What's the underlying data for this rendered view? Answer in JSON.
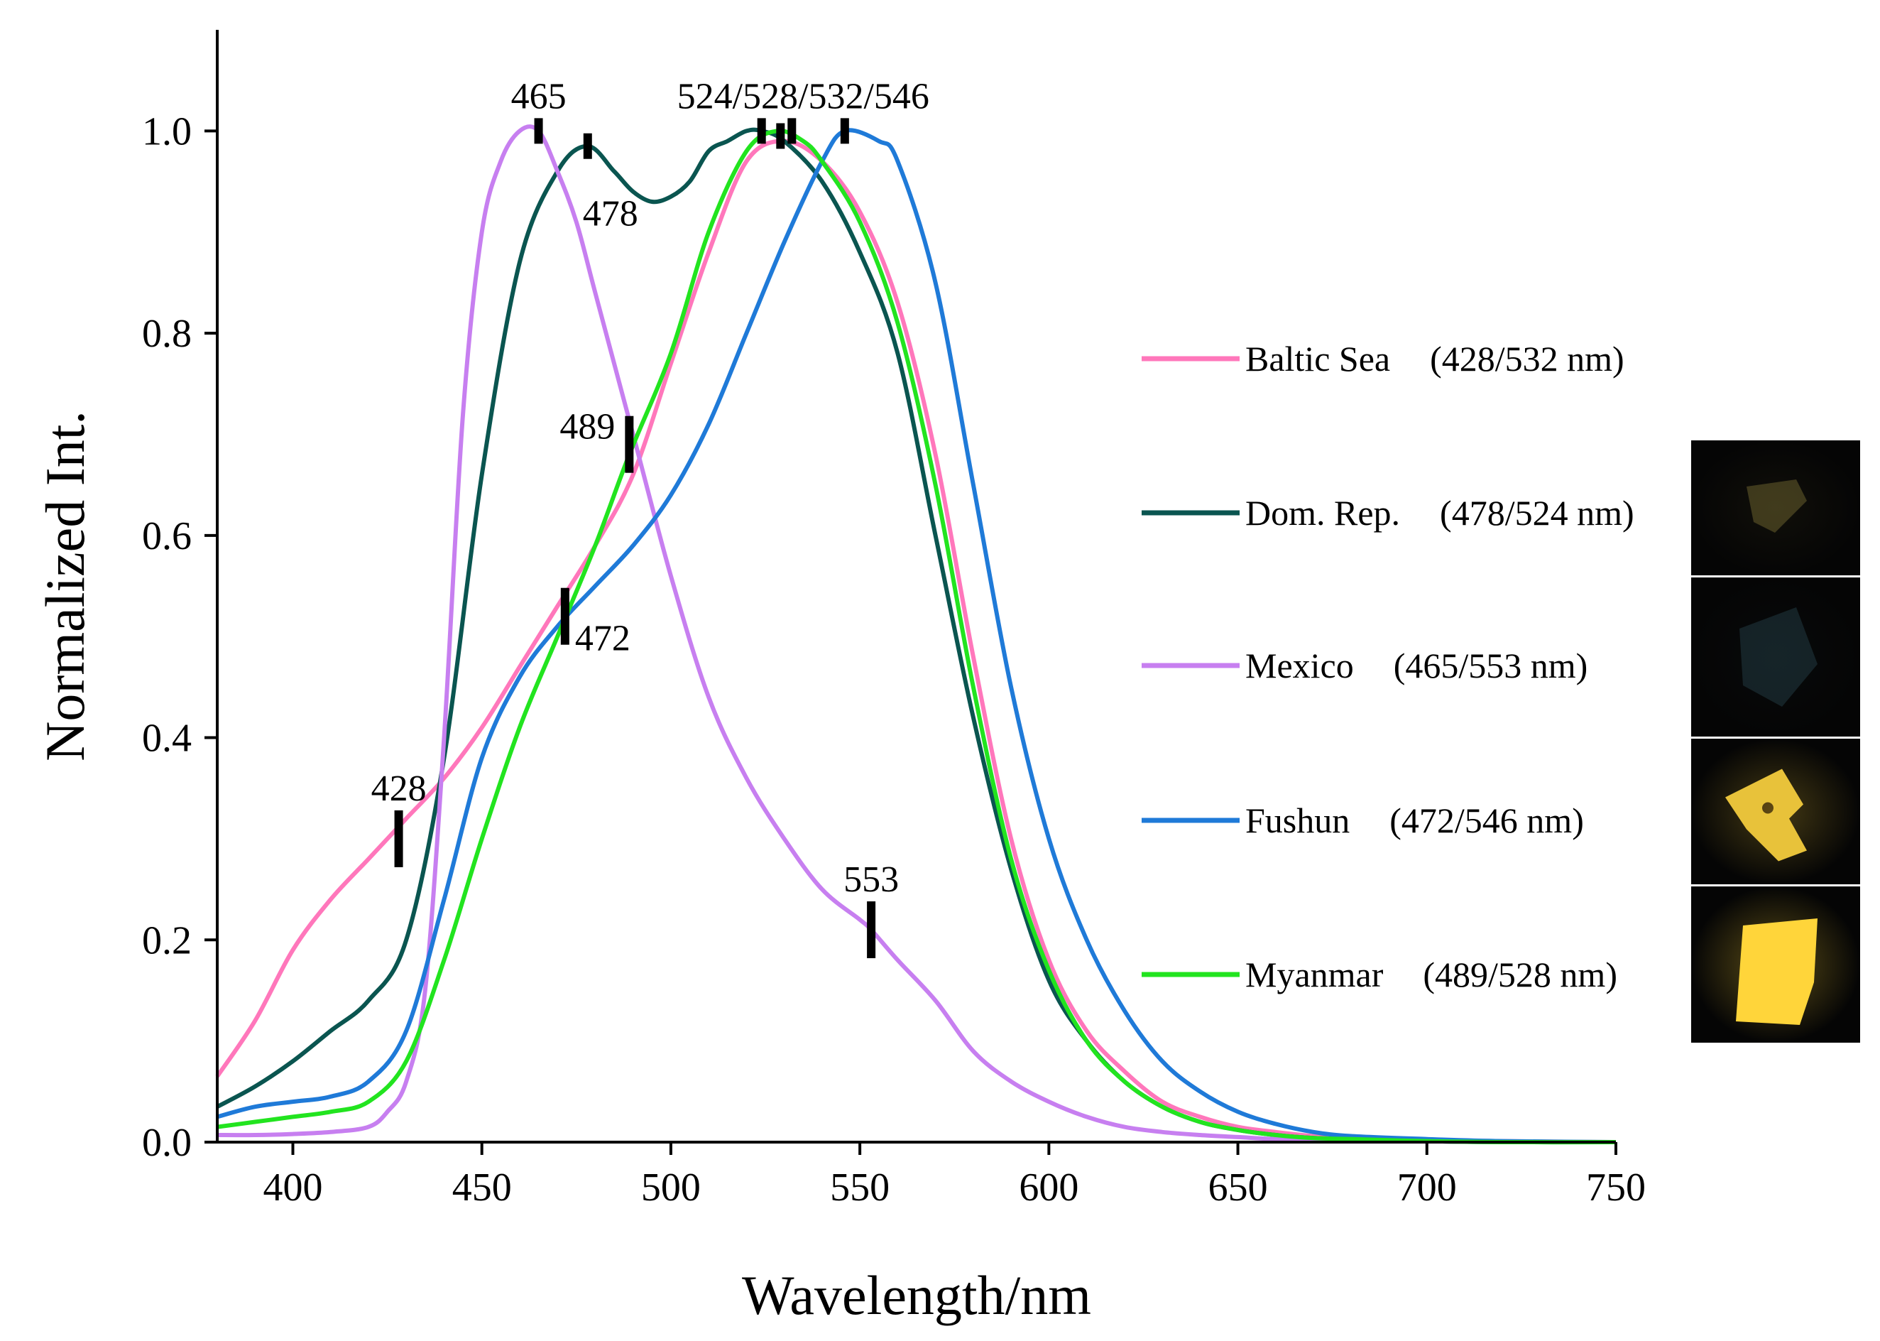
{
  "chart_data": {
    "type": "line",
    "xlabel": "Wavelength/nm",
    "ylabel": "Normalized Int.",
    "xlim": [
      380,
      750
    ],
    "ylim": [
      0,
      1.1
    ],
    "xticks": [
      400,
      450,
      500,
      550,
      600,
      650,
      700,
      750
    ],
    "xtick_labels": [
      "400",
      "450",
      "500",
      "550",
      "600",
      "650",
      "700",
      "750"
    ],
    "yticks": [
      0.0,
      0.2,
      0.4,
      0.6,
      0.8,
      1.0
    ],
    "ytick_labels": [
      "0.0",
      "0.2",
      "0.4",
      "0.6",
      "0.8",
      "1.0"
    ],
    "grid": false,
    "legend_position": "right",
    "series": [
      {
        "name": "Baltic Sea",
        "legend_label": "Baltic Sea",
        "legend_detail": "(428/532 nm)",
        "color": "#ff77bb",
        "x": [
          380,
          390,
          400,
          410,
          420,
          430,
          440,
          450,
          460,
          470,
          480,
          490,
          500,
          510,
          520,
          530,
          540,
          550,
          560,
          570,
          580,
          590,
          600,
          610,
          620,
          630,
          640,
          650,
          660,
          670,
          680,
          700,
          720,
          750
        ],
        "y": [
          0.065,
          0.12,
          0.19,
          0.24,
          0.28,
          0.32,
          0.36,
          0.41,
          0.47,
          0.53,
          0.59,
          0.66,
          0.77,
          0.88,
          0.97,
          0.99,
          0.97,
          0.92,
          0.83,
          0.68,
          0.48,
          0.3,
          0.18,
          0.11,
          0.07,
          0.04,
          0.025,
          0.015,
          0.01,
          0.006,
          0.004,
          0.002,
          0.001,
          0.0
        ]
      },
      {
        "name": "Dom. Rep.",
        "legend_label": "Dom. Rep.",
        "legend_detail": "(478/524 nm)",
        "color": "#0a5550",
        "x": [
          380,
          390,
          400,
          410,
          420,
          430,
          440,
          450,
          460,
          470,
          478,
          485,
          490,
          495,
          500,
          505,
          510,
          515,
          520,
          524,
          530,
          540,
          550,
          560,
          570,
          580,
          590,
          600,
          610,
          620,
          630,
          640,
          650,
          660,
          670,
          680,
          700,
          720,
          750
        ],
        "y": [
          0.035,
          0.055,
          0.08,
          0.11,
          0.14,
          0.2,
          0.38,
          0.66,
          0.87,
          0.96,
          0.985,
          0.96,
          0.94,
          0.93,
          0.935,
          0.95,
          0.98,
          0.99,
          1.0,
          1.0,
          0.99,
          0.95,
          0.88,
          0.78,
          0.6,
          0.42,
          0.27,
          0.16,
          0.1,
          0.06,
          0.035,
          0.02,
          0.012,
          0.007,
          0.004,
          0.003,
          0.001,
          0.0,
          0.0
        ]
      },
      {
        "name": "Mexico",
        "legend_label": "Mexico",
        "legend_detail": "(465/553 nm)",
        "color": "#c77ff0",
        "x": [
          380,
          390,
          400,
          410,
          420,
          425,
          430,
          435,
          440,
          445,
          450,
          455,
          460,
          465,
          470,
          475,
          480,
          490,
          500,
          510,
          520,
          530,
          540,
          550,
          553,
          560,
          570,
          580,
          590,
          600,
          610,
          620,
          630,
          640,
          650,
          660,
          680,
          700,
          720,
          750
        ],
        "y": [
          0.007,
          0.007,
          0.008,
          0.01,
          0.015,
          0.03,
          0.06,
          0.15,
          0.4,
          0.72,
          0.9,
          0.97,
          1.0,
          1.0,
          0.96,
          0.91,
          0.84,
          0.7,
          0.56,
          0.44,
          0.36,
          0.3,
          0.25,
          0.22,
          0.21,
          0.18,
          0.14,
          0.09,
          0.06,
          0.04,
          0.025,
          0.015,
          0.01,
          0.007,
          0.005,
          0.003,
          0.002,
          0.001,
          0.0,
          0.0
        ]
      },
      {
        "name": "Fushun",
        "legend_label": "Fushun",
        "legend_detail": "(472/546 nm)",
        "color": "#1f7ad8",
        "x": [
          380,
          390,
          400,
          410,
          420,
          430,
          440,
          450,
          460,
          470,
          480,
          490,
          500,
          510,
          520,
          530,
          540,
          546,
          555,
          560,
          570,
          580,
          590,
          600,
          610,
          620,
          630,
          640,
          650,
          660,
          670,
          680,
          700,
          720,
          750
        ],
        "y": [
          0.025,
          0.035,
          0.04,
          0.045,
          0.06,
          0.11,
          0.24,
          0.38,
          0.46,
          0.51,
          0.55,
          0.59,
          0.64,
          0.71,
          0.8,
          0.89,
          0.97,
          1.0,
          0.99,
          0.97,
          0.85,
          0.65,
          0.45,
          0.3,
          0.2,
          0.13,
          0.08,
          0.05,
          0.03,
          0.018,
          0.01,
          0.006,
          0.003,
          0.001,
          0.0
        ]
      },
      {
        "name": "Myanmar",
        "legend_label": "Myanmar",
        "legend_detail": "(489/528 nm)",
        "color": "#22e41f",
        "x": [
          380,
          390,
          400,
          410,
          420,
          430,
          440,
          450,
          460,
          470,
          480,
          489,
          500,
          510,
          520,
          528,
          535,
          540,
          550,
          560,
          570,
          580,
          590,
          600,
          610,
          620,
          630,
          640,
          650,
          660,
          670,
          680,
          700,
          720,
          750
        ],
        "y": [
          0.015,
          0.02,
          0.025,
          0.03,
          0.04,
          0.08,
          0.18,
          0.3,
          0.41,
          0.5,
          0.59,
          0.68,
          0.78,
          0.9,
          0.98,
          1.0,
          0.99,
          0.97,
          0.91,
          0.81,
          0.65,
          0.45,
          0.28,
          0.17,
          0.1,
          0.06,
          0.035,
          0.02,
          0.012,
          0.007,
          0.004,
          0.003,
          0.001,
          0.0,
          0.0
        ]
      }
    ],
    "markers": [
      {
        "x": 428,
        "y": 0.3,
        "label": "428",
        "label_side": "above"
      },
      {
        "x": 465,
        "y": 1.0,
        "label": "465",
        "label_side": "above"
      },
      {
        "x": 478,
        "y": 0.985,
        "label": "478",
        "label_side": "below"
      },
      {
        "x": 489,
        "y": 0.69,
        "label": "489",
        "label_side": "left"
      },
      {
        "x": 472,
        "y": 0.52,
        "label": "472",
        "label_side": "right"
      },
      {
        "x": 524,
        "y": 1.0,
        "label": "524/528/532/546",
        "label_side": "above"
      },
      {
        "x": 529,
        "y": 0.995,
        "label": "",
        "label_side": "none"
      },
      {
        "x": 532,
        "y": 1.0,
        "label": "",
        "label_side": "none"
      },
      {
        "x": 546,
        "y": 1.0,
        "label": "",
        "label_side": "none"
      },
      {
        "x": 553,
        "y": 0.21,
        "label": "553",
        "label_side": "above"
      }
    ],
    "sample_photos": [
      {
        "name": "dom-rep-sample",
        "glow": "#8a7d3a",
        "brightness": 0.25
      },
      {
        "name": "mexico-sample",
        "glow": "#2a4a55",
        "brightness": 0.2
      },
      {
        "name": "fushun-sample",
        "glow": "#e8c23a",
        "brightness": 0.8
      },
      {
        "name": "myanmar-sample",
        "glow": "#ffd53a",
        "brightness": 1.0
      }
    ]
  }
}
